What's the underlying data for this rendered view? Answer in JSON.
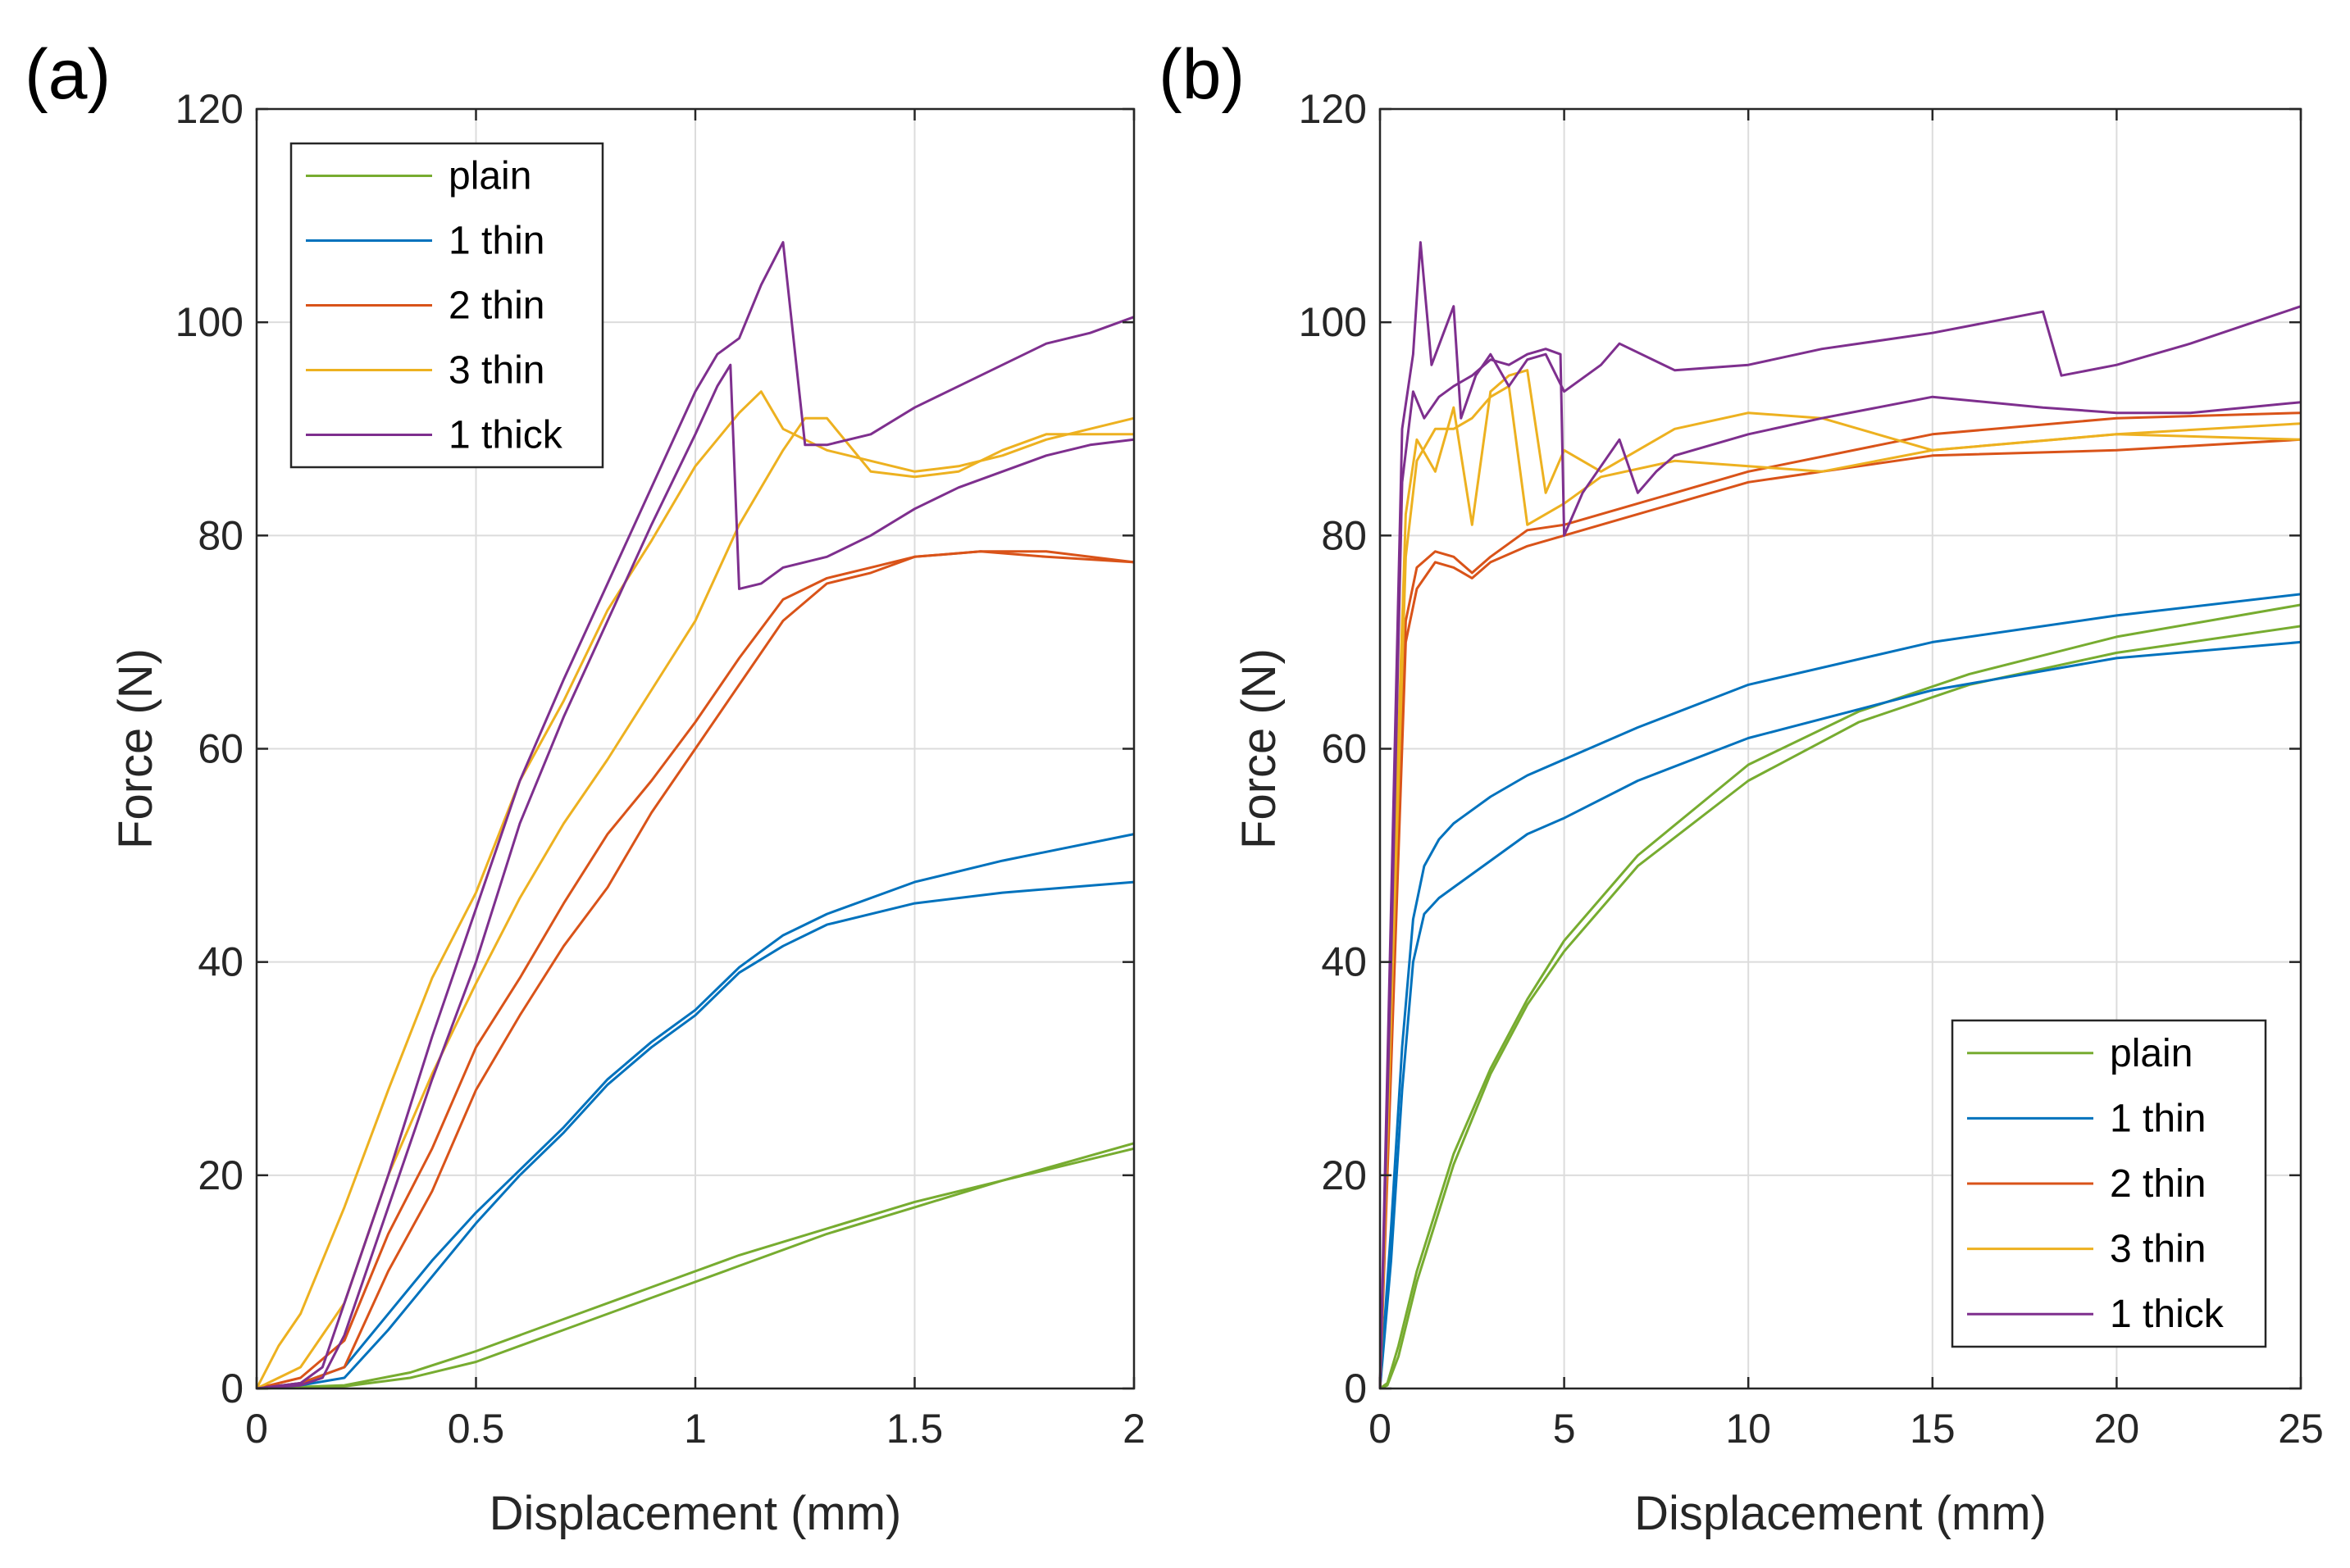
{
  "chart_data": [
    {
      "type": "line",
      "panel_label": "(a)",
      "xlabel": "Displacement (mm)",
      "ylabel": "Force (N)",
      "xlim": [
        0,
        2
      ],
      "ylim": [
        0,
        120
      ],
      "xticks": [
        0,
        0.5,
        1,
        1.5,
        2
      ],
      "xtick_labels": [
        "0",
        "0.5",
        "1",
        "1.5",
        "2"
      ],
      "yticks": [
        0,
        20,
        40,
        60,
        80,
        100,
        120
      ],
      "ytick_labels": [
        "0",
        "20",
        "40",
        "60",
        "80",
        "100",
        "120"
      ],
      "grid": true,
      "legend_position": "top-left",
      "legend": [
        "plain",
        "1 thin",
        "2 thin",
        "3 thin",
        "1 thick"
      ],
      "series": [
        {
          "name": "plain",
          "color": "#77ac30",
          "x": [
            0,
            0.2,
            0.35,
            0.5,
            0.7,
            0.9,
            1.1,
            1.3,
            1.5,
            1.7,
            2.0
          ],
          "y": [
            0,
            0.3,
            1.5,
            3.5,
            6.5,
            9.5,
            12.5,
            15,
            17.5,
            19.5,
            23
          ]
        },
        {
          "name": "plain",
          "color": "#77ac30",
          "x": [
            0,
            0.2,
            0.35,
            0.5,
            0.7,
            0.9,
            1.1,
            1.3,
            1.5,
            1.7,
            2.0
          ],
          "y": [
            0,
            0.2,
            1,
            2.5,
            5.5,
            8.5,
            11.5,
            14.5,
            17,
            19.5,
            22.5
          ]
        },
        {
          "name": "1 thin",
          "color": "#0072bd",
          "x": [
            0,
            0.1,
            0.2,
            0.3,
            0.4,
            0.5,
            0.6,
            0.7,
            0.8,
            0.9,
            1.0,
            1.1,
            1.2,
            1.3,
            1.5,
            1.7,
            2.0
          ],
          "y": [
            0,
            0.5,
            2,
            7,
            12,
            16.5,
            20.5,
            24.5,
            29,
            32.5,
            35.5,
            39.5,
            42.5,
            44.5,
            47.5,
            49.5,
            52
          ]
        },
        {
          "name": "1 thin",
          "color": "#0072bd",
          "x": [
            0,
            0.1,
            0.2,
            0.3,
            0.4,
            0.5,
            0.6,
            0.7,
            0.8,
            0.9,
            1.0,
            1.1,
            1.2,
            1.3,
            1.5,
            1.7,
            2.0
          ],
          "y": [
            0,
            0.3,
            1,
            5.5,
            10.5,
            15.5,
            20,
            24,
            28.5,
            32,
            35,
            39,
            41.5,
            43.5,
            45.5,
            46.5,
            47.5
          ]
        },
        {
          "name": "2 thin",
          "color": "#d95319",
          "x": [
            0,
            0.1,
            0.2,
            0.3,
            0.4,
            0.5,
            0.6,
            0.7,
            0.8,
            0.9,
            1.0,
            1.1,
            1.2,
            1.3,
            1.4,
            1.5,
            1.65,
            1.8,
            2.0
          ],
          "y": [
            0,
            1,
            4.5,
            14.5,
            22.5,
            32,
            38.5,
            45.5,
            52,
            57,
            62.5,
            68.5,
            74,
            76,
            77,
            78,
            78.5,
            78.5,
            77.5
          ]
        },
        {
          "name": "2 thin",
          "color": "#d95319",
          "x": [
            0,
            0.1,
            0.2,
            0.3,
            0.4,
            0.5,
            0.6,
            0.7,
            0.8,
            0.9,
            1.0,
            1.1,
            1.2,
            1.3,
            1.4,
            1.5,
            1.65,
            1.8,
            2.0
          ],
          "y": [
            0,
            0.5,
            2,
            11,
            18.5,
            28,
            35,
            41.5,
            47,
            54,
            60,
            66,
            72,
            75.5,
            76.5,
            78,
            78.5,
            78,
            77.5
          ]
        },
        {
          "name": "3 thin",
          "color": "#edb120",
          "x": [
            0,
            0.05,
            0.1,
            0.2,
            0.3,
            0.4,
            0.5,
            0.6,
            0.7,
            0.8,
            0.9,
            1.0,
            1.1,
            1.15,
            1.2,
            1.3,
            1.4,
            1.5,
            1.6,
            1.7,
            1.8,
            2.0
          ],
          "y": [
            0,
            4,
            7,
            17,
            28,
            38.5,
            46.5,
            57,
            64.5,
            73,
            79.5,
            86.5,
            91.5,
            93.5,
            90,
            88,
            87,
            86,
            86.5,
            87.5,
            89,
            91
          ]
        },
        {
          "name": "3 thin",
          "color": "#edb120",
          "x": [
            0,
            0.1,
            0.2,
            0.3,
            0.4,
            0.5,
            0.6,
            0.7,
            0.8,
            0.9,
            1.0,
            1.1,
            1.2,
            1.25,
            1.3,
            1.4,
            1.5,
            1.6,
            1.7,
            1.8,
            2.0
          ],
          "y": [
            0,
            2,
            8,
            20,
            29.5,
            38,
            46,
            53,
            59,
            65.5,
            72,
            81,
            88,
            91,
            91,
            86,
            85.5,
            86,
            88,
            89.5,
            89.5
          ]
        },
        {
          "name": "1 thick",
          "color": "#7e2f8e",
          "x": [
            0,
            0.1,
            0.15,
            0.2,
            0.3,
            0.4,
            0.5,
            0.6,
            0.7,
            0.8,
            0.9,
            1.0,
            1.05,
            1.1,
            1.15,
            1.2,
            1.25,
            1.3,
            1.4,
            1.5,
            1.6,
            1.7,
            1.8,
            1.9,
            2.0
          ],
          "y": [
            0,
            0.5,
            2,
            8,
            20,
            33,
            45,
            57,
            66.5,
            75.5,
            84.5,
            93.5,
            97,
            98.5,
            103.5,
            107.5,
            88.5,
            88.5,
            89.5,
            92,
            94,
            96,
            98,
            99,
            100.5
          ]
        },
        {
          "name": "1 thick",
          "color": "#7e2f8e",
          "x": [
            0,
            0.1,
            0.15,
            0.2,
            0.3,
            0.4,
            0.5,
            0.6,
            0.7,
            0.8,
            0.9,
            1.0,
            1.05,
            1.08,
            1.1,
            1.15,
            1.2,
            1.3,
            1.4,
            1.5,
            1.6,
            1.7,
            1.8,
            1.9,
            2.0
          ],
          "y": [
            0,
            0.3,
            1,
            5,
            17,
            29,
            40,
            53,
            63,
            72,
            81,
            89.5,
            94,
            96,
            75,
            75.5,
            77,
            78,
            80,
            82.5,
            84.5,
            86,
            87.5,
            88.5,
            89
          ]
        }
      ]
    },
    {
      "type": "line",
      "panel_label": "(b)",
      "xlabel": "Displacement (mm)",
      "ylabel": "Force (N)",
      "xlim": [
        0,
        25
      ],
      "ylim": [
        0,
        120
      ],
      "xticks": [
        0,
        5,
        10,
        15,
        20,
        25
      ],
      "xtick_labels": [
        "0",
        "5",
        "10",
        "15",
        "20",
        "25"
      ],
      "yticks": [
        0,
        20,
        40,
        60,
        80,
        100,
        120
      ],
      "ytick_labels": [
        "0",
        "20",
        "40",
        "60",
        "80",
        "100",
        "120"
      ],
      "grid": true,
      "legend_position": "bottom-right",
      "legend": [
        "plain",
        "1 thin",
        "2 thin",
        "3 thin",
        "1 thick"
      ],
      "series": [
        {
          "name": "plain",
          "color": "#77ac30",
          "x": [
            0,
            0.2,
            0.5,
            1,
            2,
            3,
            4,
            5,
            7,
            10,
            13,
            16,
            20,
            25
          ],
          "y": [
            0,
            0.5,
            4,
            11,
            22,
            30,
            36.5,
            42,
            50,
            58.5,
            63.5,
            67,
            70.5,
            73.5
          ]
        },
        {
          "name": "plain",
          "color": "#77ac30",
          "x": [
            0,
            0.2,
            0.5,
            1,
            2,
            3,
            4,
            5,
            7,
            10,
            13,
            16,
            20,
            25
          ],
          "y": [
            0,
            0.3,
            3,
            10,
            21,
            29.5,
            36,
            41,
            49,
            57,
            62.5,
            66,
            69,
            71.5
          ]
        },
        {
          "name": "1 thin",
          "color": "#0072bd",
          "x": [
            0,
            0.3,
            0.6,
            0.9,
            1.2,
            1.6,
            2,
            3,
            4,
            5,
            7,
            10,
            15,
            20,
            25
          ],
          "y": [
            0,
            15,
            32,
            44,
            49,
            51.5,
            53,
            55.5,
            57.5,
            59,
            62,
            66,
            70,
            72.5,
            74.5
          ]
        },
        {
          "name": "1 thin",
          "color": "#0072bd",
          "x": [
            0,
            0.3,
            0.6,
            0.9,
            1.2,
            1.6,
            2,
            3,
            4,
            5,
            7,
            10,
            15,
            20,
            25
          ],
          "y": [
            0,
            12,
            28,
            40,
            44.5,
            46,
            47,
            49.5,
            52,
            53.5,
            57,
            61,
            65.5,
            68.5,
            70
          ]
        },
        {
          "name": "2 thin",
          "color": "#d95319",
          "x": [
            0,
            0.3,
            0.7,
            1,
            1.5,
            2,
            2.5,
            3,
            4,
            5,
            7,
            10,
            15,
            20,
            25
          ],
          "y": [
            0,
            35,
            72,
            77,
            78.5,
            78,
            76.5,
            78,
            80.5,
            81,
            83,
            86,
            89.5,
            91,
            91.5
          ]
        },
        {
          "name": "2 thin",
          "color": "#d95319",
          "x": [
            0,
            0.3,
            0.7,
            1,
            1.5,
            2,
            2.5,
            3,
            4,
            5,
            7,
            10,
            15,
            20,
            25
          ],
          "y": [
            0,
            30,
            70,
            75,
            77.5,
            77,
            76,
            77.5,
            79,
            80,
            82,
            85,
            87.5,
            88,
            89
          ]
        },
        {
          "name": "3 thin",
          "color": "#edb120",
          "x": [
            0,
            0.3,
            0.7,
            1,
            1.5,
            2,
            2.5,
            3,
            3.5,
            4,
            4.5,
            5,
            6,
            8,
            10,
            12,
            15,
            20,
            25
          ],
          "y": [
            0,
            40,
            82,
            89,
            86,
            92,
            81,
            93.5,
            95,
            95.5,
            84,
            88,
            86,
            90,
            91.5,
            91,
            88,
            89.5,
            90.5
          ]
        },
        {
          "name": "3 thin",
          "color": "#edb120",
          "x": [
            0,
            0.3,
            0.7,
            1,
            1.5,
            2,
            2.5,
            3,
            3.5,
            4,
            5,
            6,
            8,
            10,
            12,
            15,
            20,
            25
          ],
          "y": [
            0,
            35,
            78,
            87,
            90,
            90,
            91,
            93,
            94,
            81,
            83,
            85.5,
            87,
            86.5,
            86,
            88,
            89.5,
            89
          ]
        },
        {
          "name": "1 thick",
          "color": "#7e2f8e",
          "x": [
            0,
            0.3,
            0.6,
            0.9,
            1.1,
            1.4,
            2,
            2.2,
            2.6,
            3,
            3.5,
            4,
            4.5,
            5,
            6,
            6.5,
            8,
            10,
            12,
            15,
            18,
            18.5,
            20,
            22,
            25
          ],
          "y": [
            0,
            45,
            90,
            97,
            107.5,
            96,
            101.5,
            91,
            95,
            97,
            94,
            96.5,
            97,
            93.5,
            96,
            98,
            95.5,
            96,
            97.5,
            99,
            101,
            95,
            96,
            98,
            101.5
          ]
        },
        {
          "name": "1 thick",
          "color": "#7e2f8e",
          "x": [
            0,
            0.3,
            0.6,
            0.9,
            1.2,
            1.6,
            2,
            2.5,
            3,
            3.5,
            4,
            4.5,
            4.9,
            5,
            5.5,
            6,
            6.5,
            7,
            7.5,
            8,
            10,
            12,
            15,
            18,
            20,
            22,
            25
          ],
          "y": [
            0,
            40,
            85,
            93.5,
            91,
            93,
            94,
            95,
            96.5,
            96,
            97,
            97.5,
            97,
            80,
            84,
            86.5,
            89,
            84,
            86,
            87.5,
            89.5,
            91,
            93,
            92,
            91.5,
            91.5,
            92.5
          ]
        }
      ]
    }
  ]
}
